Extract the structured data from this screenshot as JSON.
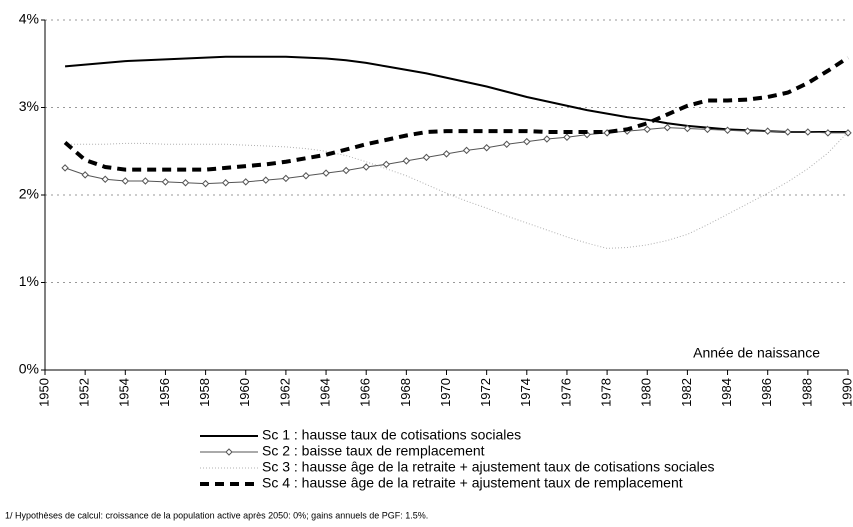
{
  "chart_data": {
    "type": "line",
    "x": [
      1951,
      1952,
      1953,
      1954,
      1955,
      1956,
      1957,
      1958,
      1959,
      1960,
      1961,
      1962,
      1963,
      1964,
      1965,
      1966,
      1967,
      1968,
      1969,
      1970,
      1971,
      1972,
      1973,
      1974,
      1975,
      1976,
      1977,
      1978,
      1979,
      1980,
      1981,
      1982,
      1983,
      1984,
      1985,
      1986,
      1987,
      1988,
      1989,
      1990
    ],
    "series": [
      {
        "name": "Sc 1 : hausse taux de cotisations sociales",
        "color": "#000000",
        "width": 2,
        "dash": "none",
        "marker": false,
        "values": [
          3.47,
          3.49,
          3.51,
          3.53,
          3.54,
          3.55,
          3.56,
          3.57,
          3.58,
          3.58,
          3.58,
          3.58,
          3.57,
          3.56,
          3.54,
          3.51,
          3.47,
          3.43,
          3.39,
          3.34,
          3.29,
          3.24,
          3.18,
          3.12,
          3.07,
          3.02,
          2.97,
          2.93,
          2.89,
          2.86,
          2.82,
          2.79,
          2.77,
          2.75,
          2.74,
          2.73,
          2.72,
          2.72,
          2.72,
          2.72
        ]
      },
      {
        "name": "Sc 2 : baisse taux de remplacement",
        "color": "#555555",
        "width": 1,
        "dash": "none",
        "marker": true,
        "values": [
          2.31,
          2.23,
          2.18,
          2.16,
          2.16,
          2.15,
          2.14,
          2.13,
          2.14,
          2.15,
          2.17,
          2.19,
          2.22,
          2.25,
          2.28,
          2.32,
          2.35,
          2.39,
          2.43,
          2.47,
          2.51,
          2.54,
          2.58,
          2.61,
          2.64,
          2.66,
          2.69,
          2.71,
          2.73,
          2.75,
          2.77,
          2.76,
          2.75,
          2.74,
          2.73,
          2.73,
          2.72,
          2.72,
          2.71,
          2.71
        ]
      },
      {
        "name": "Sc 3 : hausse âge de la retraite + ajustement taux de cotisations sociales",
        "color": "#b0b0b0",
        "width": 1,
        "dash": "1,2",
        "marker": false,
        "values": [
          2.58,
          2.58,
          2.58,
          2.59,
          2.59,
          2.58,
          2.58,
          2.58,
          2.58,
          2.57,
          2.56,
          2.55,
          2.53,
          2.5,
          2.45,
          2.38,
          2.3,
          2.22,
          2.12,
          2.02,
          1.93,
          1.85,
          1.76,
          1.68,
          1.6,
          1.52,
          1.45,
          1.39,
          1.4,
          1.43,
          1.48,
          1.55,
          1.66,
          1.78,
          1.9,
          2.02,
          2.15,
          2.3,
          2.48,
          2.72
        ]
      },
      {
        "name": "Sc 4 : hausse âge de la retraite + ajustement taux de remplacement",
        "color": "#000000",
        "width": 4,
        "dash": "9,6",
        "marker": false,
        "values": [
          2.6,
          2.4,
          2.32,
          2.29,
          2.29,
          2.29,
          2.29,
          2.29,
          2.31,
          2.33,
          2.35,
          2.38,
          2.42,
          2.46,
          2.52,
          2.58,
          2.63,
          2.68,
          2.72,
          2.73,
          2.73,
          2.73,
          2.73,
          2.73,
          2.72,
          2.72,
          2.72,
          2.72,
          2.75,
          2.82,
          2.92,
          3.02,
          3.08,
          3.08,
          3.09,
          3.12,
          3.17,
          3.28,
          3.42,
          3.57
        ]
      }
    ],
    "x_label": "Année de naissance",
    "footnote": "1/ Hypothèses de calcul: croissance de la population active après 2050: 0%; gains annuels de PGF: 1.5%.",
    "xlim": [
      1950,
      1990
    ],
    "xticks": [
      1950,
      1952,
      1954,
      1956,
      1958,
      1960,
      1962,
      1964,
      1966,
      1968,
      1970,
      1972,
      1974,
      1976,
      1978,
      1980,
      1982,
      1984,
      1986,
      1988,
      1990
    ],
    "ylim": [
      0,
      4
    ],
    "yticks": [
      {
        "value": 0,
        "label": "0%"
      },
      {
        "value": 1,
        "label": "1%"
      },
      {
        "value": 2,
        "label": "2%"
      },
      {
        "value": 3,
        "label": "3%"
      },
      {
        "value": 4,
        "label": "4%"
      }
    ],
    "grid": true
  }
}
